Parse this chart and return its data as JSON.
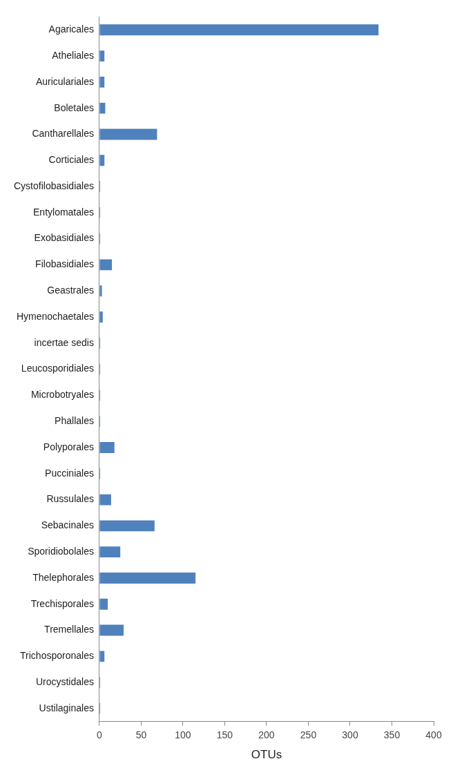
{
  "chart_data": {
    "type": "bar",
    "orientation": "horizontal",
    "xlabel": "OTUs",
    "categories": [
      "Agaricales",
      "Atheliales",
      "Auriculariales",
      "Boletales",
      "Cantharellales",
      "Corticiales",
      "Cystofilobasidiales",
      "Entylomatales",
      "Exobasidiales",
      "Filobasidiales",
      "Geastrales",
      "Hymenochaetales",
      "incertae sedis",
      "Leucosporidiales",
      "Microbotryales",
      "Phallales",
      "Polyporales",
      "Pucciniales",
      "Russulales",
      "Sebacinales",
      "Sporidiobolales",
      "Thelephorales",
      "Trechisporales",
      "Tremellales",
      "Trichosporonales",
      "Urocystidales",
      "Ustilaginales"
    ],
    "values": [
      334,
      6,
      6,
      7,
      69,
      6,
      1,
      1,
      1,
      15,
      3,
      4,
      1,
      1,
      1,
      1,
      18,
      1,
      14,
      66,
      25,
      115,
      10,
      29,
      6,
      1,
      1
    ],
    "color": "#4f81bd",
    "xlim": [
      0,
      400
    ],
    "xticks": [
      0,
      50,
      100,
      150,
      200,
      250,
      300,
      350,
      400
    ],
    "grid": false,
    "legend": false
  }
}
